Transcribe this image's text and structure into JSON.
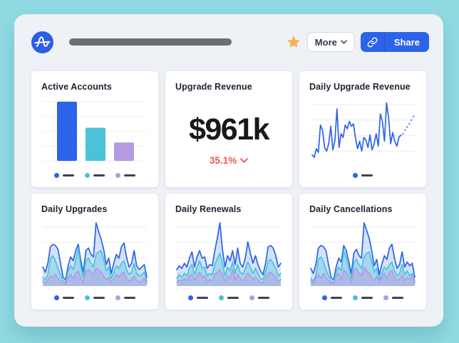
{
  "theme": {
    "outer_bg": "#90dbe2",
    "panel_bg": "#eef1f6",
    "card_bg": "#ffffff",
    "blue": "#2c63e8",
    "blue_fill": "rgba(93,141,238,0.25)",
    "blue_projection": "#6d9bf0",
    "teal": "#4ac3d8",
    "teal_fill": "rgba(74,195,216,0.35)",
    "purple": "#b49ae2",
    "purple_fill": "rgba(180,154,226,0.45)",
    "red": "#ee5a4f",
    "star": "#f3b44e",
    "legend_dash": "#3d434f",
    "title_placeholder": "#6e6e6e",
    "share_divider": "#2451c9",
    "grid_solid": "#ececf0",
    "grid_dotted": "#dcdce2"
  },
  "header": {
    "more_label": "More",
    "share_label": "Share"
  },
  "chart_data": [
    {
      "type": "bar",
      "title": "Active Accounts",
      "categories": [
        "",
        "",
        ""
      ],
      "values": [
        100,
        56,
        31
      ],
      "colors": [
        "#2c63e8",
        "#4ac3d8",
        "#b49ae2"
      ],
      "ylim": [
        0,
        100
      ],
      "grid": "dotted",
      "legend_position": "bottom"
    },
    {
      "type": "stat",
      "title": "Upgrade Revenue",
      "value": "$961k",
      "change": "35.1%",
      "change_direction": "down",
      "change_color": "#ee5a4f"
    },
    {
      "type": "line",
      "title": "Daily Upgrade Revenue",
      "ylim": [
        0,
        100
      ],
      "grid": "solid",
      "legend_position": "bottom",
      "series": [
        {
          "color": "#2c63e8",
          "values": [
            12,
            8,
            22,
            16,
            60,
            52,
            24,
            18,
            30,
            58,
            20,
            35,
            86,
            24,
            46,
            40,
            60,
            54,
            66,
            58,
            62,
            38,
            22,
            34,
            18,
            40,
            36,
            24,
            44,
            20,
            30,
            46,
            26,
            78,
            66,
            34,
            96,
            72,
            30,
            48,
            34,
            26,
            40,
            44
          ]
        }
      ],
      "projection": {
        "style": "dotted",
        "color": "#6d9bf0",
        "values": [
          46,
          52,
          57,
          62,
          68,
          74
        ]
      }
    },
    {
      "type": "area",
      "title": "Daily Upgrades",
      "ylim": [
        0,
        100
      ],
      "grid": "solid",
      "legend_position": "bottom",
      "series": [
        {
          "color": "#2c63e8",
          "fill": "rgba(93,141,238,0.25)",
          "values": [
            30,
            22,
            36,
            62,
            66,
            64,
            58,
            36,
            14,
            10,
            32,
            46,
            40,
            56,
            66,
            40,
            22,
            56,
            60,
            50,
            46,
            100,
            86,
            74,
            58,
            34,
            44,
            20,
            36,
            50,
            44,
            62,
            68,
            46,
            30,
            36,
            56,
            32,
            26,
            30,
            34,
            14
          ]
        },
        {
          "color": "#4ac3d8",
          "fill": "rgba(74,195,216,0.35)",
          "values": [
            14,
            10,
            18,
            44,
            48,
            40,
            28,
            18,
            8,
            6,
            24,
            32,
            26,
            40,
            60,
            30,
            14,
            40,
            44,
            36,
            30,
            50,
            54,
            56,
            42,
            24,
            30,
            12,
            22,
            32,
            28,
            36,
            40,
            26,
            18,
            22,
            36,
            20,
            16,
            18,
            22,
            8
          ]
        },
        {
          "color": "#b49ae2",
          "fill": "rgba(180,154,226,0.45)",
          "values": [
            8,
            5,
            10,
            16,
            14,
            18,
            12,
            8,
            4,
            3,
            14,
            18,
            12,
            20,
            24,
            12,
            6,
            24,
            26,
            22,
            18,
            28,
            26,
            22,
            16,
            10,
            14,
            6,
            12,
            18,
            14,
            20,
            22,
            12,
            8,
            10,
            16,
            8,
            6,
            8,
            12,
            5
          ]
        }
      ]
    },
    {
      "type": "area",
      "title": "Daily Renewals",
      "ylim": [
        0,
        100
      ],
      "grid": "solid",
      "legend_position": "bottom",
      "series": [
        {
          "color": "#2c63e8",
          "fill": "rgba(93,141,238,0.25)",
          "values": [
            26,
            32,
            28,
            36,
            30,
            44,
            54,
            30,
            46,
            56,
            44,
            46,
            28,
            34,
            32,
            56,
            76,
            100,
            58,
            30,
            48,
            40,
            56,
            34,
            60,
            36,
            30,
            44,
            70,
            52,
            36,
            48,
            34,
            24,
            18,
            36,
            62,
            64,
            60,
            48,
            30,
            36
          ]
        },
        {
          "color": "#4ac3d8",
          "fill": "rgba(74,195,216,0.35)",
          "values": [
            12,
            18,
            14,
            20,
            16,
            28,
            34,
            18,
            30,
            40,
            28,
            30,
            16,
            20,
            18,
            34,
            44,
            52,
            36,
            16,
            30,
            24,
            38,
            20,
            34,
            22,
            18,
            28,
            38,
            30,
            20,
            28,
            20,
            12,
            10,
            22,
            40,
            42,
            36,
            28,
            16,
            20
          ]
        },
        {
          "color": "#b49ae2",
          "fill": "rgba(180,154,226,0.45)",
          "values": [
            6,
            10,
            8,
            12,
            8,
            16,
            18,
            10,
            16,
            22,
            14,
            16,
            8,
            10,
            8,
            18,
            22,
            26,
            18,
            8,
            16,
            12,
            26,
            10,
            18,
            12,
            8,
            14,
            20,
            16,
            10,
            14,
            10,
            6,
            5,
            12,
            20,
            22,
            18,
            14,
            8,
            10
          ]
        }
      ]
    },
    {
      "type": "area",
      "title": "Daily Cancellations",
      "ylim": [
        0,
        100
      ],
      "grid": "solid",
      "legend_position": "bottom",
      "series": [
        {
          "color": "#2c63e8",
          "fill": "rgba(93,141,238,0.25)",
          "values": [
            28,
            20,
            34,
            60,
            64,
            62,
            56,
            34,
            14,
            10,
            30,
            44,
            38,
            64,
            56,
            38,
            20,
            52,
            58,
            48,
            44,
            100,
            88,
            76,
            56,
            32,
            42,
            18,
            34,
            48,
            42,
            60,
            66,
            44,
            28,
            34,
            54,
            30,
            38,
            32,
            36,
            14
          ]
        },
        {
          "color": "#4ac3d8",
          "fill": "rgba(74,195,216,0.35)",
          "values": [
            12,
            8,
            16,
            42,
            46,
            38,
            26,
            16,
            8,
            5,
            22,
            30,
            24,
            56,
            44,
            28,
            12,
            38,
            42,
            34,
            28,
            46,
            52,
            54,
            40,
            22,
            28,
            10,
            20,
            30,
            26,
            34,
            38,
            24,
            16,
            20,
            34,
            18,
            24,
            16,
            20,
            8
          ]
        },
        {
          "color": "#b49ae2",
          "fill": "rgba(180,154,226,0.45)",
          "values": [
            8,
            4,
            12,
            18,
            12,
            20,
            14,
            8,
            4,
            3,
            16,
            20,
            10,
            26,
            22,
            14,
            5,
            26,
            28,
            20,
            16,
            30,
            24,
            20,
            14,
            8,
            16,
            5,
            14,
            20,
            12,
            22,
            24,
            14,
            8,
            12,
            18,
            8,
            14,
            10,
            16,
            4
          ]
        }
      ]
    }
  ]
}
